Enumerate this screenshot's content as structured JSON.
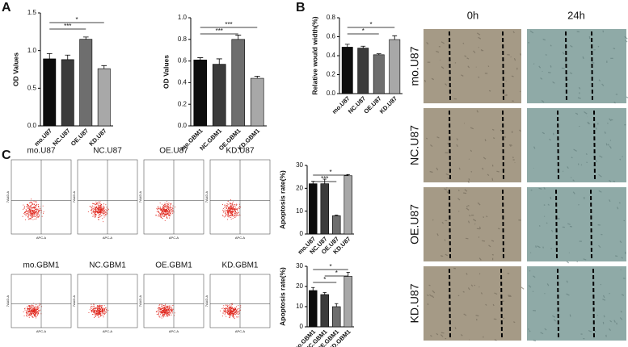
{
  "panel_labels": [
    "A",
    "B",
    "C"
  ],
  "chart_data": [
    {
      "type": "bar",
      "y_label": "OD Values",
      "categories": [
        "mo.U87",
        "NC.U87",
        "OE.U87",
        "KD.U87"
      ],
      "values": [
        0.89,
        0.88,
        1.15,
        0.76
      ],
      "errors": [
        0.07,
        0.06,
        0.03,
        0.04
      ],
      "colors": [
        "#0d0d0d",
        "#3b3b3b",
        "#6e6e6e",
        "#a8a8a8"
      ],
      "ylim": [
        0,
        1.5
      ],
      "yticks": [
        {
          "value": 0,
          "label": "0.0"
        },
        0.5,
        {
          "value": 1,
          "label": "1.0"
        },
        1.5
      ],
      "annotations": [
        {
          "text": "***",
          "pair": [
            "mo.U87",
            "OE.U87"
          ]
        },
        {
          "text": "*",
          "pair": [
            "mo.U87",
            "KD.U87"
          ]
        }
      ]
    },
    {
      "type": "bar",
      "y_label": "OD Values",
      "categories": [
        "mo.GBM1",
        "NC.GBM1",
        "OE.GBM1",
        "KD.GBM1"
      ],
      "values": [
        0.61,
        0.57,
        0.8,
        0.44
      ],
      "errors": [
        0.02,
        0.05,
        0.04,
        0.02
      ],
      "colors": [
        "#0d0d0d",
        "#3b3b3b",
        "#6e6e6e",
        "#a8a8a8"
      ],
      "ylim": [
        0,
        1
      ],
      "yticks": [
        {
          "value": 0,
          "label": "0.0"
        },
        0.2,
        0.4,
        0.6,
        0.8,
        {
          "value": 1,
          "label": "1.0"
        }
      ],
      "annotations": [
        {
          "text": "***",
          "pair": [
            "mo.GBM1",
            "OE.GBM1"
          ]
        },
        {
          "text": "***",
          "pair": [
            "mo.GBM1",
            "KD.GBM1"
          ]
        }
      ]
    },
    {
      "type": "bar",
      "y_label": "Relative would width(%)",
      "categories": [
        "mo.U87",
        "NC.U87",
        "OE.U87",
        "KD.U87"
      ],
      "values": [
        0.49,
        0.48,
        0.41,
        0.57
      ],
      "errors": [
        0.03,
        0.02,
        0.01,
        0.04
      ],
      "colors": [
        "#0d0d0d",
        "#3b3b3b",
        "#6e6e6e",
        "#a8a8a8"
      ],
      "ylim": [
        0,
        0.8
      ],
      "yticks": [
        {
          "value": 0,
          "label": "0.0"
        },
        0.2,
        0.4,
        0.6,
        0.8
      ],
      "annotations": [
        {
          "text": "*",
          "pair": [
            "mo.U87",
            "OE.U87"
          ]
        },
        {
          "text": "*",
          "pair": [
            "mo.U87",
            "KD.U87"
          ]
        }
      ]
    },
    {
      "type": "bar",
      "y_label": "Apoptosis rate(%)",
      "categories": [
        "mo.U87",
        "NC.U87",
        "OE.U87",
        "KD.U87"
      ],
      "values": [
        22,
        22,
        8,
        25.5
      ],
      "errors": [
        1,
        2,
        0.3,
        0.5
      ],
      "colors": [
        "#0d0d0d",
        "#3b3b3b",
        "#6e6e6e",
        "#a8a8a8"
      ],
      "ylim": [
        0,
        30
      ],
      "yticks": [
        0,
        10,
        20,
        30
      ],
      "annotations": [
        {
          "text": "***",
          "pair": [
            "mo.U87",
            "OE.U87"
          ]
        },
        {
          "text": "*",
          "pair": [
            "mo.U87",
            "KD.U87"
          ]
        }
      ]
    },
    {
      "type": "bar",
      "y_label": "Apoptosis rate(%)",
      "categories": [
        "mo.GBM1",
        "NC.GBM1",
        "OE.GBM1",
        "KD.GBM1"
      ],
      "values": [
        18,
        16,
        10,
        25
      ],
      "errors": [
        1.5,
        1,
        1.5,
        2
      ],
      "colors": [
        "#0d0d0d",
        "#3b3b3b",
        "#6e6e6e",
        "#a8a8a8"
      ],
      "ylim": [
        0,
        30
      ],
      "yticks": [
        0,
        10,
        20,
        30
      ],
      "annotations": [
        {
          "text": "*",
          "pair": [
            "mo.GBM1",
            "OE.GBM1"
          ]
        },
        {
          "text": "*",
          "pair": [
            "NC.GBM1",
            "KD.GBM1"
          ]
        },
        {
          "text": "*",
          "pair": [
            "mo.GBM1",
            "KD.GBM1"
          ]
        }
      ]
    }
  ],
  "flow_panels": [
    "mo.U87",
    "NC.U87",
    "OE.U87",
    "KD.U87",
    "mo.GBM1",
    "NC.GBM1",
    "OE.GBM1",
    "KD.GBM1"
  ],
  "flow_x_label": "APC-A",
  "flow_y_label": "7AAD-A",
  "wound_panel": {
    "columns": [
      "0h",
      "24h"
    ],
    "rows": [
      "mo.U87",
      "NC.U87",
      "OE.U87",
      "KD.U87"
    ]
  }
}
